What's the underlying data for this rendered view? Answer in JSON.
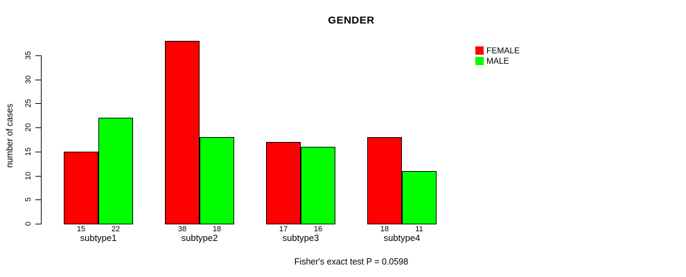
{
  "title": "GENDER",
  "y_axis": {
    "label": "number of cases",
    "ticks": [
      0,
      5,
      10,
      15,
      20,
      25,
      30,
      35
    ]
  },
  "legend": {
    "items": [
      {
        "label": "FEMALE",
        "color": "#FF0000"
      },
      {
        "label": "MALE",
        "color": "#00FF00"
      }
    ]
  },
  "caption": "Fisher's exact test P = 0.0598",
  "chart_data": {
    "type": "bar",
    "title": "GENDER",
    "categories": [
      "subtype1",
      "subtype2",
      "subtype3",
      "subtype4"
    ],
    "series": [
      {
        "name": "FEMALE",
        "color": "#FF0000",
        "values": [
          15,
          38,
          17,
          18
        ]
      },
      {
        "name": "MALE",
        "color": "#00FF00",
        "values": [
          22,
          18,
          16,
          11
        ]
      }
    ],
    "bar_value_labels": [
      [
        "15",
        "22"
      ],
      [
        "38",
        "18"
      ],
      [
        "17",
        "16"
      ],
      [
        "18",
        "11"
      ]
    ],
    "xlabel": "",
    "ylabel": "number of cases",
    "yticks": [
      0,
      5,
      10,
      15,
      20,
      25,
      30,
      35
    ],
    "ylim": [
      0,
      38
    ],
    "grid": false,
    "legend_position": "top-right",
    "annotation": "Fisher's exact test P = 0.0598"
  }
}
